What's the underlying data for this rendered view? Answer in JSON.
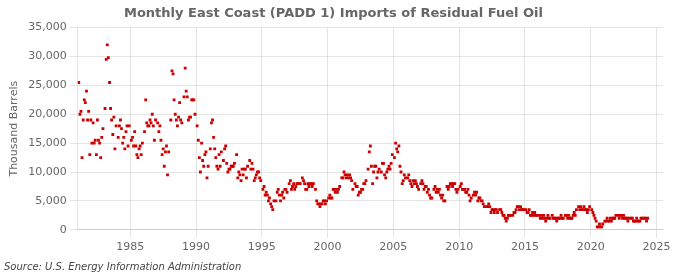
{
  "chart_data": {
    "type": "scatter",
    "title": "Monthly East Coast (PADD 1) Imports of Residual Fuel Oil",
    "ylabel": "Thousand Barrels",
    "source": "Source: U.S. Energy Information Administration",
    "color": "#cc0000",
    "marker": "square",
    "grid": true,
    "xlim": [
      1981.0,
      2025.5
    ],
    "xticks": [
      1985,
      1990,
      1995,
      2000,
      2005,
      2010,
      2015,
      2020,
      2025
    ],
    "ylim": [
      0,
      35000
    ],
    "yticks": [
      0,
      {
        "value": 5000,
        "label": "5,000"
      },
      {
        "value": 10000,
        "label": "10,000"
      },
      {
        "value": 15000,
        "label": "15,000"
      },
      {
        "value": 20000,
        "label": "20,000"
      },
      {
        "value": 25000,
        "label": "25,000"
      },
      {
        "value": 30000,
        "label": "30,000"
      },
      {
        "value": 35000,
        "label": "35,000"
      }
    ],
    "x": [
      1981.08,
      1981.17,
      1981.25,
      1981.33,
      1981.42,
      1981.5,
      1981.58,
      1981.67,
      1981.75,
      1981.83,
      1981.92,
      1982.0,
      1982.08,
      1982.17,
      1982.25,
      1982.33,
      1982.42,
      1982.5,
      1982.58,
      1982.67,
      1982.75,
      1982.83,
      1982.92,
      1983.08,
      1983.17,
      1983.25,
      1983.33,
      1983.42,
      1983.5,
      1983.58,
      1983.67,
      1983.75,
      1983.83,
      1983.92,
      1984.08,
      1984.17,
      1984.25,
      1984.33,
      1984.42,
      1984.5,
      1984.58,
      1984.67,
      1984.75,
      1984.83,
      1984.92,
      1985.08,
      1985.17,
      1985.25,
      1985.33,
      1985.42,
      1985.5,
      1985.58,
      1985.67,
      1985.75,
      1985.83,
      1985.92,
      1986.08,
      1986.17,
      1986.25,
      1986.33,
      1986.42,
      1986.5,
      1986.58,
      1986.67,
      1986.75,
      1986.83,
      1986.92,
      1987.08,
      1987.17,
      1987.25,
      1987.33,
      1987.42,
      1987.5,
      1987.58,
      1987.67,
      1987.75,
      1987.83,
      1987.92,
      1988.08,
      1988.17,
      1988.25,
      1988.33,
      1988.42,
      1988.5,
      1988.58,
      1988.67,
      1988.75,
      1988.83,
      1988.92,
      1989.08,
      1989.17,
      1989.25,
      1989.33,
      1989.42,
      1989.5,
      1989.58,
      1989.67,
      1989.75,
      1989.83,
      1989.92,
      1990.08,
      1990.17,
      1990.25,
      1990.33,
      1990.42,
      1990.5,
      1990.58,
      1990.67,
      1990.75,
      1990.83,
      1990.92,
      1991.08,
      1991.17,
      1991.25,
      1991.33,
      1991.42,
      1991.5,
      1991.58,
      1991.67,
      1991.75,
      1991.83,
      1991.92,
      1992.08,
      1992.17,
      1992.25,
      1992.33,
      1992.42,
      1992.5,
      1992.58,
      1992.67,
      1992.75,
      1992.83,
      1992.92,
      1993.08,
      1993.17,
      1993.25,
      1993.33,
      1993.42,
      1993.5,
      1993.58,
      1993.67,
      1993.75,
      1993.83,
      1993.92,
      1994.08,
      1994.17,
      1994.25,
      1994.33,
      1994.42,
      1994.5,
      1994.58,
      1994.67,
      1994.75,
      1994.83,
      1994.92,
      1995.08,
      1995.17,
      1995.25,
      1995.33,
      1995.42,
      1995.5,
      1995.58,
      1995.67,
      1995.75,
      1995.83,
      1995.92,
      1996.08,
      1996.17,
      1996.25,
      1996.33,
      1996.42,
      1996.5,
      1996.58,
      1996.67,
      1996.75,
      1996.83,
      1996.92,
      1997.08,
      1997.17,
      1997.25,
      1997.33,
      1997.42,
      1997.5,
      1997.58,
      1997.67,
      1997.75,
      1997.83,
      1997.92,
      1998.08,
      1998.17,
      1998.25,
      1998.33,
      1998.42,
      1998.5,
      1998.58,
      1998.67,
      1998.75,
      1998.83,
      1998.92,
      1999.08,
      1999.17,
      1999.25,
      1999.33,
      1999.42,
      1999.5,
      1999.58,
      1999.67,
      1999.75,
      1999.83,
      1999.92,
      2000.08,
      2000.17,
      2000.25,
      2000.33,
      2000.42,
      2000.5,
      2000.58,
      2000.67,
      2000.75,
      2000.83,
      2000.92,
      2001.08,
      2001.17,
      2001.25,
      2001.33,
      2001.42,
      2001.5,
      2001.58,
      2001.67,
      2001.75,
      2001.83,
      2001.92,
      2002.08,
      2002.17,
      2002.25,
      2002.33,
      2002.42,
      2002.5,
      2002.58,
      2002.67,
      2002.75,
      2002.83,
      2002.92,
      2003.08,
      2003.17,
      2003.25,
      2003.33,
      2003.42,
      2003.5,
      2003.58,
      2003.67,
      2003.75,
      2003.83,
      2003.92,
      2004.08,
      2004.17,
      2004.25,
      2004.33,
      2004.42,
      2004.5,
      2004.58,
      2004.67,
      2004.75,
      2004.83,
      2004.92,
      2005.08,
      2005.17,
      2005.25,
      2005.33,
      2005.42,
      2005.5,
      2005.58,
      2005.67,
      2005.75,
      2005.83,
      2005.92,
      2006.08,
      2006.17,
      2006.25,
      2006.33,
      2006.42,
      2006.5,
      2006.58,
      2006.67,
      2006.75,
      2006.83,
      2006.92,
      2007.08,
      2007.17,
      2007.25,
      2007.33,
      2007.42,
      2007.5,
      2007.58,
      2007.67,
      2007.75,
      2007.83,
      2007.92,
      2008.08,
      2008.17,
      2008.25,
      2008.33,
      2008.42,
      2008.5,
      2008.58,
      2008.67,
      2008.75,
      2008.83,
      2008.92,
      2009.08,
      2009.17,
      2009.25,
      2009.33,
      2009.42,
      2009.5,
      2009.58,
      2009.67,
      2009.75,
      2009.83,
      2009.92,
      2010.08,
      2010.17,
      2010.25,
      2010.33,
      2010.42,
      2010.5,
      2010.58,
      2010.67,
      2010.75,
      2010.83,
      2010.92,
      2011.08,
      2011.17,
      2011.25,
      2011.33,
      2011.42,
      2011.5,
      2011.58,
      2011.67,
      2011.75,
      2011.83,
      2011.92,
      2012.08,
      2012.17,
      2012.25,
      2012.33,
      2012.42,
      2012.5,
      2012.58,
      2012.67,
      2012.75,
      2012.83,
      2012.92,
      2013.08,
      2013.17,
      2013.25,
      2013.33,
      2013.42,
      2013.5,
      2013.58,
      2013.67,
      2013.75,
      2013.83,
      2013.92,
      2014.08,
      2014.17,
      2014.25,
      2014.33,
      2014.42,
      2014.5,
      2014.58,
      2014.67,
      2014.75,
      2014.83,
      2014.92,
      2015.08,
      2015.17,
      2015.25,
      2015.33,
      2015.42,
      2015.5,
      2015.58,
      2015.67,
      2015.75,
      2015.83,
      2015.92,
      2016.08,
      2016.17,
      2016.25,
      2016.33,
      2016.42,
      2016.5,
      2016.58,
      2016.67,
      2016.75,
      2016.83,
      2016.92,
      2017.08,
      2017.17,
      2017.25,
      2017.33,
      2017.42,
      2017.5,
      2017.58,
      2017.67,
      2017.75,
      2017.83,
      2017.92,
      2018.08,
      2018.17,
      2018.25,
      2018.33,
      2018.42,
      2018.5,
      2018.58,
      2018.67,
      2018.75,
      2018.83,
      2018.92,
      2019.08,
      2019.17,
      2019.25,
      2019.33,
      2019.42,
      2019.5,
      2019.58,
      2019.67,
      2019.75,
      2019.83,
      2019.92,
      2020.08,
      2020.17,
      2020.25,
      2020.33,
      2020.42,
      2020.5,
      2020.58,
      2020.67,
      2020.75,
      2020.83,
      2020.92,
      2021.08,
      2021.17,
      2021.25,
      2021.33,
      2021.42,
      2021.5,
      2021.58,
      2021.67,
      2021.75,
      2021.83,
      2021.92,
      2022.08,
      2022.17,
      2022.25,
      2022.33,
      2022.42,
      2022.5,
      2022.58,
      2022.67,
      2022.75,
      2022.83,
      2022.92,
      2023.08,
      2023.17,
      2023.25,
      2023.33,
      2023.42,
      2023.5,
      2023.58,
      2023.67,
      2023.75,
      2023.83,
      2023.92,
      2024.08,
      2024.17,
      2024.25,
      2024.33
    ],
    "values": [
      25500,
      20000,
      20500,
      12500,
      19000,
      22500,
      22000,
      24000,
      19000,
      20500,
      13000,
      19000,
      15000,
      18500,
      15000,
      15500,
      13000,
      19000,
      15500,
      15000,
      12500,
      16000,
      17500,
      21000,
      29500,
      32000,
      29800,
      25500,
      21000,
      19000,
      16500,
      19500,
      14000,
      18000,
      16000,
      18000,
      19000,
      17500,
      15000,
      16000,
      14000,
      17000,
      18000,
      14500,
      18000,
      15500,
      16000,
      14500,
      17000,
      14500,
      13000,
      12500,
      14000,
      14500,
      13000,
      15000,
      17000,
      22500,
      18500,
      18000,
      18000,
      19000,
      18500,
      20000,
      18000,
      15500,
      19000,
      18500,
      17000,
      18000,
      15500,
      13000,
      14000,
      11000,
      13500,
      14500,
      9500,
      13500,
      19000,
      27500,
      27000,
      22500,
      20000,
      19000,
      18000,
      19500,
      22000,
      19000,
      18500,
      23000,
      28000,
      24000,
      23000,
      19000,
      19500,
      19500,
      22500,
      22500,
      22500,
      20000,
      18000,
      15500,
      12500,
      10000,
      15000,
      12000,
      11000,
      13000,
      13500,
      9000,
      11000,
      14000,
      18500,
      19000,
      16000,
      14000,
      12500,
      11000,
      10500,
      13000,
      11000,
      13500,
      12000,
      14000,
      14500,
      11500,
      10000,
      10500,
      10500,
      11000,
      11000,
      11000,
      11500,
      13000,
      9000,
      10000,
      9500,
      8500,
      10500,
      9500,
      10500,
      10500,
      9000,
      11000,
      12000,
      10500,
      11500,
      10500,
      8500,
      9000,
      9500,
      10000,
      10000,
      9000,
      8500,
      7000,
      7500,
      6000,
      6500,
      6000,
      5000,
      5500,
      4500,
      4000,
      3500,
      5000,
      5000,
      6500,
      7000,
      6000,
      5000,
      6000,
      6500,
      5500,
      7000,
      7000,
      6500,
      8000,
      8500,
      7000,
      7500,
      8000,
      7000,
      7500,
      8000,
      8000,
      8000,
      8000,
      9000,
      8500,
      8000,
      7000,
      7000,
      8000,
      7500,
      8000,
      8000,
      7500,
      8000,
      7000,
      5000,
      4500,
      4500,
      4000,
      4500,
      4500,
      5000,
      5000,
      4500,
      5000,
      5500,
      6000,
      5500,
      5500,
      7000,
      7000,
      6500,
      7000,
      6500,
      7000,
      7500,
      9000,
      9000,
      10000,
      9500,
      9000,
      9500,
      9000,
      9500,
      9000,
      8500,
      7000,
      8000,
      7500,
      7500,
      6000,
      6500,
      6500,
      7000,
      7000,
      8000,
      8000,
      8500,
      10500,
      13500,
      14500,
      11000,
      8000,
      10000,
      11000,
      11000,
      9000,
      10000,
      10500,
      10000,
      11500,
      11500,
      9500,
      9000,
      10000,
      10500,
      11000,
      10500,
      11500,
      13000,
      12500,
      15000,
      14000,
      13500,
      14500,
      11000,
      10000,
      8000,
      8500,
      9500,
      9000,
      9000,
      9500,
      8500,
      8000,
      7500,
      8500,
      8000,
      8500,
      8000,
      7500,
      7000,
      8000,
      8500,
      8000,
      7000,
      7500,
      7500,
      6500,
      7000,
      6000,
      5500,
      5500,
      7000,
      7500,
      6500,
      7000,
      6500,
      7000,
      6000,
      5500,
      6000,
      5000,
      5000,
      7500,
      7000,
      7500,
      8000,
      8000,
      7500,
      8000,
      8000,
      7000,
      6500,
      7000,
      7500,
      8000,
      7000,
      7000,
      7000,
      6500,
      6500,
      7000,
      6000,
      5000,
      5500,
      6000,
      6500,
      6000,
      6500,
      5000,
      5500,
      5500,
      5000,
      5000,
      4500,
      4000,
      4000,
      4000,
      4500,
      4000,
      3000,
      3500,
      3500,
      3000,
      3500,
      3500,
      3000,
      3500,
      3500,
      3000,
      2500,
      2500,
      2000,
      1500,
      2000,
      2500,
      2500,
      2500,
      2500,
      3000,
      3000,
      3500,
      4000,
      4000,
      3500,
      4000,
      3500,
      3500,
      3500,
      3500,
      3000,
      3000,
      3500,
      2500,
      2500,
      3000,
      2500,
      3000,
      2500,
      2500,
      2500,
      2000,
      2500,
      2000,
      2500,
      2000,
      1500,
      2000,
      2500,
      2000,
      2000,
      2500,
      2000,
      2000,
      2000,
      1500,
      2000,
      2000,
      2000,
      2500,
      2000,
      2000,
      2500,
      2500,
      2000,
      2500,
      2000,
      2000,
      2000,
      2500,
      3000,
      2500,
      3500,
      4000,
      3500,
      4000,
      3500,
      3500,
      4000,
      3500,
      3500,
      3000,
      3500,
      4000,
      3500,
      3000,
      2500,
      2000,
      1500,
      500,
      500,
      1000,
      500,
      500,
      1000,
      1500,
      1500,
      2000,
      1500,
      1500,
      2000,
      1500,
      2000,
      2000,
      2000,
      2500,
      2500,
      2000,
      2500,
      2500,
      2000,
      2500,
      2000,
      2000,
      2000,
      1500,
      2000,
      2000,
      2000,
      1500,
      1500,
      1500,
      2000,
      1500,
      1500,
      1500,
      2000,
      2000,
      2000,
      2000,
      1500,
      2000
    ]
  }
}
